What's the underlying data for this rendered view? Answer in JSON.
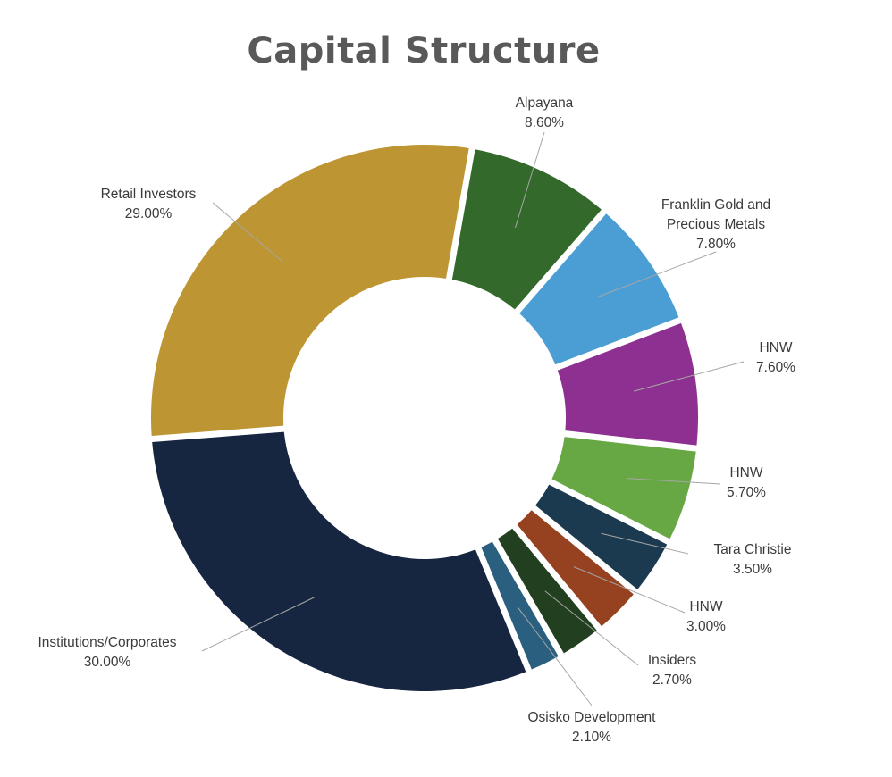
{
  "chart_data": {
    "type": "pie",
    "title": "Capital Structure",
    "slices": [
      {
        "label": "Alpayana",
        "value": 8.6,
        "display": "8.60%",
        "color": "#336a2b"
      },
      {
        "label": "Franklin Gold and Precious Metals",
        "value": 7.8,
        "display": "7.80%",
        "color": "#4a9ed4"
      },
      {
        "label": "HNW",
        "value": 7.6,
        "display": "7.60%",
        "color": "#8e3091"
      },
      {
        "label": "HNW",
        "value": 5.7,
        "display": "5.70%",
        "color": "#67a845"
      },
      {
        "label": "Tara Christie",
        "value": 3.5,
        "display": "3.50%",
        "color": "#1b3a50"
      },
      {
        "label": "HNW",
        "value": 3.0,
        "display": "3.00%",
        "color": "#964221"
      },
      {
        "label": "Insiders",
        "value": 2.7,
        "display": "2.70%",
        "color": "#22401f"
      },
      {
        "label": "Osisko Development",
        "value": 2.1,
        "display": "2.10%",
        "color": "#2b5f80"
      },
      {
        "label": "Institutions/Corporates",
        "value": 30.0,
        "display": "30.00%",
        "color": "#172640"
      },
      {
        "label": "Retail Investors",
        "value": 29.0,
        "display": "29.00%",
        "color": "#bd9633"
      }
    ],
    "style": "donut",
    "legend": "none",
    "data_labels": "outside with leader lines"
  }
}
